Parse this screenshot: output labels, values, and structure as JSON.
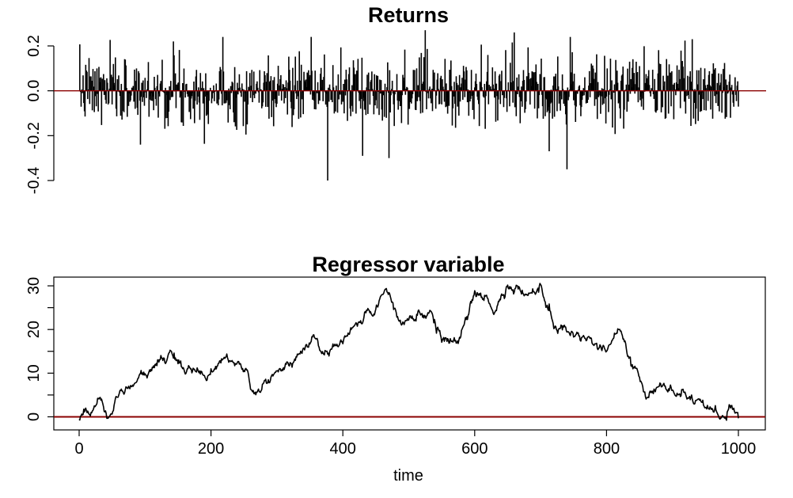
{
  "chart_data": [
    {
      "type": "bar",
      "title": "Returns",
      "xlabel": "",
      "ylabel": "",
      "xlim": [
        0,
        1000
      ],
      "ylim": [
        -0.4,
        0.2
      ],
      "yticks": [
        "-0.4",
        "-0.2",
        "0.0",
        "0.2"
      ],
      "yticks_values": [
        -0.4,
        -0.2,
        0.0,
        0.2
      ],
      "box": false,
      "reference_line": {
        "y": 0,
        "color": "#8b0000"
      },
      "series": [
        {
          "x_start": 1,
          "x_step": 1,
          "generator": {
            "n": 1000,
            "seed": 7,
            "sd": 0.075
          },
          "notable_points": [
            {
              "x": 377,
              "y": -0.4
            },
            {
              "x": 740,
              "y": -0.35
            },
            {
              "x": 525,
              "y": 0.27
            },
            {
              "x": 470,
              "y": -0.3
            },
            {
              "x": 430,
              "y": -0.29
            },
            {
              "x": 143,
              "y": 0.22
            },
            {
              "x": 660,
              "y": 0.26
            },
            {
              "x": 745,
              "y": 0.24
            },
            {
              "x": 930,
              "y": 0.23
            },
            {
              "x": 93,
              "y": -0.24
            }
          ]
        }
      ]
    },
    {
      "type": "line",
      "title": "Regressor variable",
      "xlabel": "time",
      "ylabel": "",
      "xlim": [
        0,
        1000
      ],
      "ylim": [
        -3,
        32
      ],
      "xticks": [
        "0",
        "200",
        "400",
        "600",
        "800",
        "1000"
      ],
      "xticks_values": [
        0,
        200,
        400,
        600,
        800,
        1000
      ],
      "yticks": [
        "0",
        "10",
        "20",
        "30"
      ],
      "yticks_values": [
        0,
        10,
        20,
        30
      ],
      "box": true,
      "reference_line": {
        "y": 0,
        "color": "#8b0000"
      },
      "series": [
        {
          "anchors_x": [
            0,
            10,
            20,
            30,
            50,
            55,
            70,
            100,
            130,
            140,
            160,
            190,
            220,
            250,
            265,
            300,
            340,
            355,
            370,
            400,
            425,
            450,
            465,
            490,
            520,
            535,
            550,
            575,
            590,
            600,
            615,
            630,
            650,
            680,
            700,
            720,
            740,
            770,
            800,
            820,
            840,
            860,
            880,
            900,
            930,
            955,
            975,
            985,
            1000
          ],
          "anchors_y": [
            0,
            2,
            1,
            3,
            -0.5,
            5,
            6,
            10,
            13,
            15,
            11,
            9,
            14,
            11,
            6,
            10,
            15,
            19,
            14,
            17,
            22,
            25,
            29,
            21,
            23,
            25,
            18,
            17,
            24,
            29,
            28,
            24,
            30,
            28,
            30,
            21,
            20,
            17,
            16,
            20,
            12,
            5,
            7,
            5,
            5,
            1,
            0,
            2,
            0
          ],
          "generator": {
            "n": 1001,
            "seed": 21,
            "noise_sd": 0.45
          }
        }
      ]
    }
  ]
}
